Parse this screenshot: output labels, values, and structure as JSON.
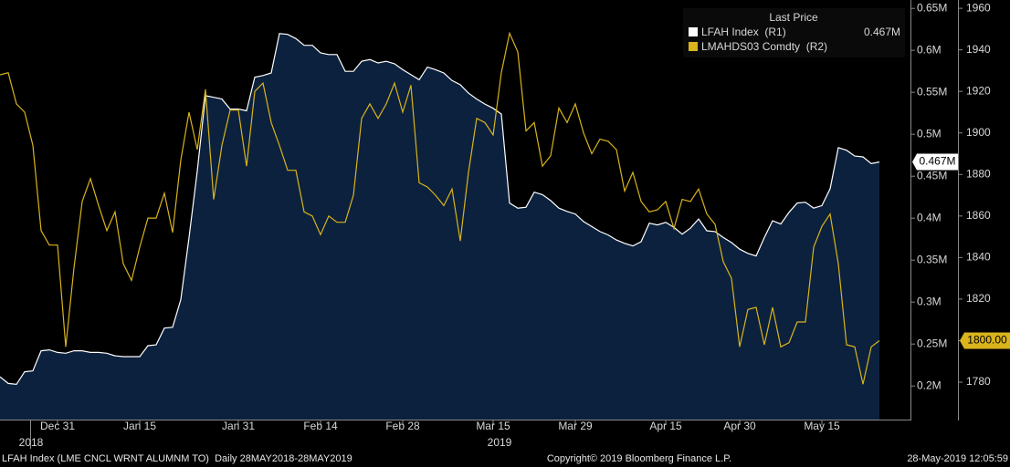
{
  "chart_data": {
    "type": "line",
    "legend_title": "Last Price",
    "categories": [
      null,
      null,
      null,
      null,
      null,
      null,
      null,
      "Dec 31",
      null,
      null,
      null,
      null,
      null,
      null,
      null,
      null,
      null,
      "Jan 15",
      null,
      null,
      null,
      null,
      null,
      null,
      null,
      null,
      null,
      null,
      null,
      "Jan 31",
      null,
      null,
      null,
      null,
      null,
      null,
      null,
      null,
      null,
      "Feb 14",
      null,
      null,
      null,
      null,
      null,
      null,
      null,
      null,
      null,
      "Feb 28",
      null,
      null,
      null,
      null,
      null,
      null,
      null,
      null,
      null,
      null,
      "Mar 15",
      null,
      null,
      null,
      null,
      null,
      null,
      null,
      null,
      null,
      "Mar 29",
      null,
      null,
      null,
      null,
      null,
      null,
      null,
      null,
      null,
      null,
      "Apr 15",
      null,
      null,
      null,
      null,
      null,
      null,
      null,
      null,
      "Apr 30",
      null,
      null,
      null,
      null,
      null,
      null,
      null,
      null,
      null,
      "May 15",
      null,
      null,
      null,
      null,
      null,
      null,
      null
    ],
    "year_categories": [
      null,
      null,
      "2018",
      null,
      null,
      null,
      null,
      null,
      null,
      null,
      null,
      null,
      null,
      null,
      null,
      null,
      null,
      null,
      null,
      null,
      null,
      null,
      null,
      null,
      null,
      null,
      null,
      null,
      null,
      null,
      null,
      null,
      null,
      null,
      null,
      null,
      null,
      null,
      null,
      null,
      null,
      null,
      null,
      null,
      null,
      null,
      null,
      null,
      null,
      null,
      null,
      null,
      null,
      null,
      null,
      null,
      null,
      null,
      null,
      "2019",
      null,
      null,
      null,
      null,
      null,
      null,
      null,
      null,
      null,
      null,
      null,
      null,
      null,
      null,
      null,
      null,
      null,
      null,
      null,
      null,
      null,
      null,
      null,
      null,
      null,
      null,
      null,
      null,
      null,
      null,
      null,
      null,
      null,
      null,
      null,
      null,
      null,
      null,
      null,
      null,
      null,
      null,
      null,
      null,
      null,
      null,
      null,
      null
    ],
    "series": [
      {
        "name": "LFAH Index  (R1)",
        "color": "#ffffff",
        "area_color": "#0c213d",
        "axis": "y",
        "last_label": "0.467M",
        "values": [
          0.211,
          0.203,
          0.202,
          0.217,
          0.218,
          0.242,
          0.243,
          0.24,
          0.239,
          0.242,
          0.242,
          0.24,
          0.24,
          0.239,
          0.236,
          0.235,
          0.235,
          0.235,
          0.248,
          0.249,
          0.269,
          0.27,
          0.303,
          0.377,
          0.456,
          0.546,
          0.544,
          0.542,
          0.53,
          0.53,
          0.528,
          0.568,
          0.57,
          0.573,
          0.62,
          0.619,
          0.614,
          0.606,
          0.606,
          0.597,
          0.595,
          0.595,
          0.575,
          0.575,
          0.587,
          0.589,
          0.585,
          0.587,
          0.584,
          0.577,
          0.571,
          0.565,
          0.58,
          0.577,
          0.573,
          0.564,
          0.559,
          0.549,
          0.542,
          0.536,
          0.531,
          0.524,
          0.418,
          0.412,
          0.413,
          0.431,
          0.428,
          0.421,
          0.412,
          0.408,
          0.405,
          0.396,
          0.39,
          0.384,
          0.38,
          0.374,
          0.37,
          0.367,
          0.372,
          0.394,
          0.392,
          0.395,
          0.389,
          0.381,
          0.388,
          0.399,
          0.385,
          0.384,
          0.377,
          0.371,
          0.363,
          0.358,
          0.355,
          0.377,
          0.397,
          0.393,
          0.407,
          0.418,
          0.419,
          0.412,
          0.415,
          0.435,
          0.484,
          0.481,
          0.474,
          0.473,
          0.465,
          0.467
        ]
      },
      {
        "name": "LMAHDS03 Comdty  (R2)",
        "color": "#d9b41c",
        "axis": "y2",
        "last_label": "1800.00",
        "values": [
          1928,
          1929,
          1914,
          1910,
          1894,
          1853,
          1846,
          1846,
          1797,
          1835,
          1867,
          1878,
          1865,
          1853,
          1862,
          1837,
          1829,
          1845,
          1859,
          1859,
          1871,
          1852,
          1887,
          1910,
          1892,
          1921,
          1868,
          1894,
          1911,
          1911,
          1884,
          1920,
          1924,
          1905,
          1894,
          1882,
          1882,
          1862,
          1860,
          1851,
          1860,
          1857,
          1857,
          1870,
          1907,
          1914,
          1907,
          1914,
          1924,
          1910,
          1923,
          1876,
          1874,
          1870,
          1865,
          1873,
          1848,
          1881,
          1907,
          1905,
          1899,
          1929,
          1948,
          1939,
          1901,
          1905,
          1884,
          1889,
          1912,
          1905,
          1914,
          1900,
          1890,
          1897,
          1896,
          1892,
          1872,
          1881,
          1867,
          1862,
          1863,
          1867,
          1854,
          1868,
          1867,
          1873,
          1861,
          1856,
          1838,
          1830,
          1797,
          1815,
          1816,
          1798,
          1816,
          1797,
          1799,
          1809,
          1809,
          1845,
          1855,
          1861,
          1837,
          1798,
          1797,
          1779,
          1797,
          1800
        ]
      }
    ],
    "ylim": [
      0.16,
      0.66
    ],
    "yticks": [
      {
        "value": 0.2,
        "label": "0.2M"
      },
      {
        "value": 0.25,
        "label": "0.25M"
      },
      {
        "value": 0.3,
        "label": "0.3M"
      },
      {
        "value": 0.35,
        "label": "0.35M"
      },
      {
        "value": 0.4,
        "label": "0.4M"
      },
      {
        "value": 0.45,
        "label": "0.45M"
      },
      {
        "value": 0.5,
        "label": "0.5M"
      },
      {
        "value": 0.55,
        "label": "0.55M"
      },
      {
        "value": 0.6,
        "label": "0.6M"
      },
      {
        "value": 0.65,
        "label": "0.65M"
      }
    ],
    "y2lim": [
      1762,
      1964
    ],
    "y2ticks": [
      1780,
      1800,
      1820,
      1840,
      1860,
      1880,
      1900,
      1920,
      1940,
      1960
    ],
    "footer_left": "LFAH Index (LME CNCL WRNT ALUMNM TO)  Daily 28MAY2018-28MAY2019",
    "footer_center": "Copyright© 2019 Bloomberg Finance L.P.",
    "footer_right": "28-May-2019 12:05:59"
  }
}
